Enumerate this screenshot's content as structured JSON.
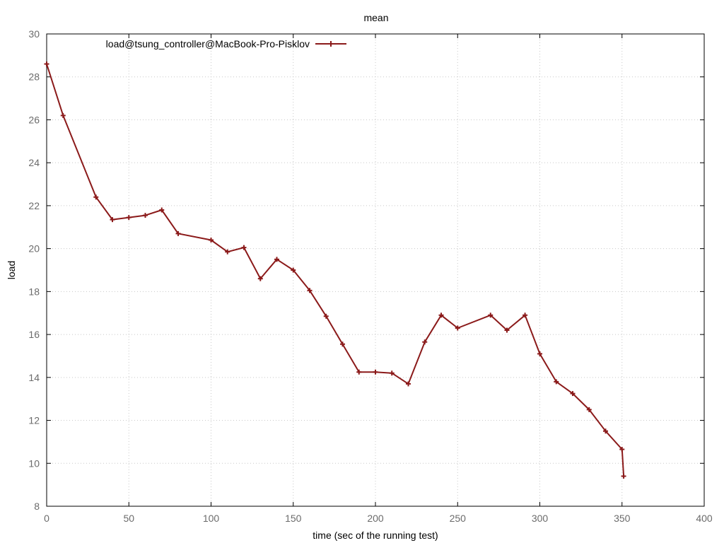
{
  "chart_data": {
    "type": "line",
    "title": "mean",
    "xlabel": "time (sec of the running test)",
    "ylabel": "load",
    "xlim": [
      0,
      400
    ],
    "ylim": [
      8,
      30
    ],
    "xticks": [
      0,
      50,
      100,
      150,
      200,
      250,
      300,
      350,
      400
    ],
    "yticks": [
      8,
      10,
      12,
      14,
      16,
      18,
      20,
      22,
      24,
      26,
      28,
      30
    ],
    "grid": true,
    "legend_position": "top-left",
    "series": [
      {
        "name": "load@tsung_controller@MacBook-Pro-Pisklov",
        "color": "#8b1a1a",
        "marker": "plus",
        "points": [
          [
            0,
            28.6
          ],
          [
            10,
            26.2
          ],
          [
            30,
            22.4
          ],
          [
            40,
            21.35
          ],
          [
            50,
            21.45
          ],
          [
            60,
            21.55
          ],
          [
            70,
            21.8
          ],
          [
            80,
            20.7
          ],
          [
            100,
            20.4
          ],
          [
            110,
            19.85
          ],
          [
            120,
            20.05
          ],
          [
            130,
            18.6
          ],
          [
            140,
            19.5
          ],
          [
            150,
            19.0
          ],
          [
            160,
            18.05
          ],
          [
            170,
            16.85
          ],
          [
            180,
            15.55
          ],
          [
            190,
            14.25
          ],
          [
            200,
            14.25
          ],
          [
            210,
            14.2
          ],
          [
            220,
            13.7
          ],
          [
            230,
            15.65
          ],
          [
            240,
            16.9
          ],
          [
            250,
            16.3
          ],
          [
            270,
            16.9
          ],
          [
            280,
            16.2
          ],
          [
            291,
            16.9
          ],
          [
            300,
            15.1
          ],
          [
            310,
            13.8
          ],
          [
            320,
            13.25
          ],
          [
            330,
            12.5
          ],
          [
            340,
            11.5
          ],
          [
            350,
            10.65
          ],
          [
            351,
            9.4
          ]
        ]
      }
    ]
  }
}
